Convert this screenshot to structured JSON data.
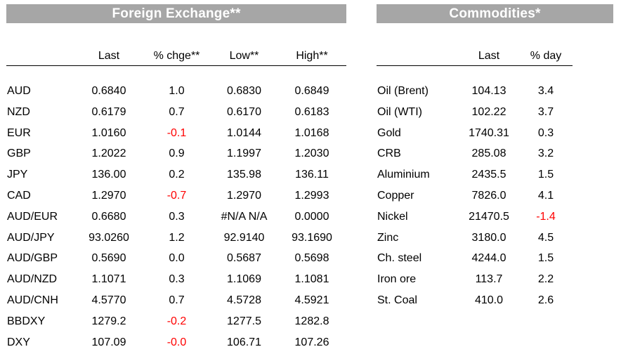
{
  "fx": {
    "title": "Foreign Exchange**",
    "columns": [
      "Last",
      "% chge**",
      "Low**",
      "High**"
    ],
    "rows": [
      {
        "name": "AUD",
        "last": "0.6840",
        "chg": "1.0",
        "low": "0.6830",
        "high": "0.6849"
      },
      {
        "name": "NZD",
        "last": "0.6179",
        "chg": "0.7",
        "low": "0.6170",
        "high": "0.6183"
      },
      {
        "name": "EUR",
        "last": "1.0160",
        "chg": "-0.1",
        "low": "1.0144",
        "high": "1.0168"
      },
      {
        "name": "GBP",
        "last": "1.2022",
        "chg": "0.9",
        "low": "1.1997",
        "high": "1.2030"
      },
      {
        "name": "JPY",
        "last": "136.00",
        "chg": "0.2",
        "low": "135.98",
        "high": "136.11"
      },
      {
        "name": "CAD",
        "last": "1.2970",
        "chg": "-0.7",
        "low": "1.2970",
        "high": "1.2993"
      },
      {
        "name": "AUD/EUR",
        "last": "0.6680",
        "chg": "0.3",
        "low": "#N/A N/A",
        "high": "0.0000"
      },
      {
        "name": "AUD/JPY",
        "last": "93.0260",
        "chg": "1.2",
        "low": "92.9140",
        "high": "93.1690"
      },
      {
        "name": "AUD/GBP",
        "last": "0.5690",
        "chg": "0.0",
        "low": "0.5687",
        "high": "0.5698"
      },
      {
        "name": "AUD/NZD",
        "last": "1.1071",
        "chg": "0.3",
        "low": "1.1069",
        "high": "1.1081"
      },
      {
        "name": "AUD/CNH",
        "last": "4.5770",
        "chg": "0.7",
        "low": "4.5728",
        "high": "4.5921"
      },
      {
        "name": "BBDXY",
        "last": "1279.2",
        "chg": "-0.2",
        "low": "1277.5",
        "high": "1282.8"
      },
      {
        "name": "DXY",
        "last": "107.09",
        "chg": "-0.0",
        "low": "106.71",
        "high": "107.26"
      }
    ]
  },
  "commodities": {
    "title": "Commodities*",
    "columns": [
      "Last",
      "% day"
    ],
    "rows": [
      {
        "name": "Oil (Brent)",
        "last": "104.13",
        "day": "3.4"
      },
      {
        "name": "Oil (WTI)",
        "last": "102.22",
        "day": "3.7"
      },
      {
        "name": "Gold",
        "last": "1740.31",
        "day": "0.3"
      },
      {
        "name": "CRB",
        "last": "285.08",
        "day": "3.2"
      },
      {
        "name": "Aluminium",
        "last": "2435.5",
        "day": "1.5"
      },
      {
        "name": "Copper",
        "last": "7826.0",
        "day": "4.1"
      },
      {
        "name": "Nickel",
        "last": "21470.5",
        "day": "-1.4"
      },
      {
        "name": "Zinc",
        "last": "3180.0",
        "day": "4.5"
      },
      {
        "name": "Ch. steel",
        "last": "4244.0",
        "day": "1.5"
      },
      {
        "name": "Iron ore",
        "last": "113.7",
        "day": "2.2"
      },
      {
        "name": "St. Coal",
        "last": "410.0",
        "day": "2.6"
      }
    ]
  },
  "colors": {
    "banner": "#a6a6a6",
    "negative": "#ff0000"
  }
}
